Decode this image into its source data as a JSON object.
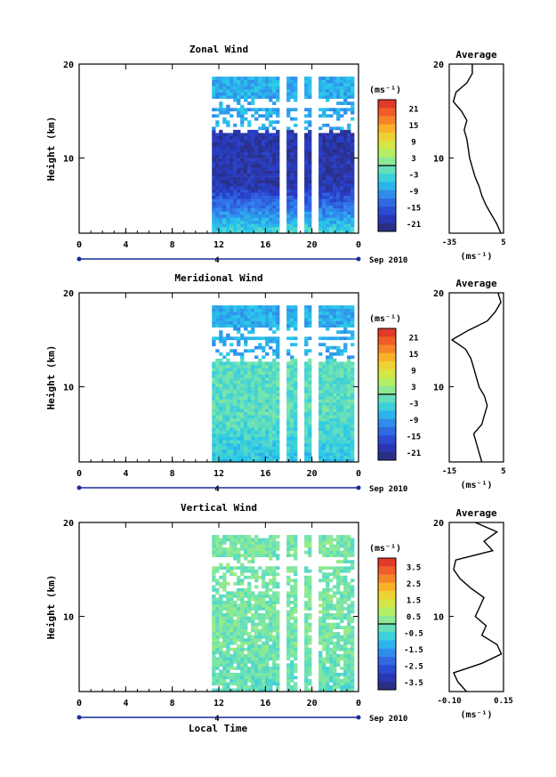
{
  "footer_axis_label": "Local Time",
  "colorbar_unit_label": "(ms⁻¹)",
  "avg_unit_label": "(ms⁻¹)",
  "panels": [
    {
      "title": "Zonal Wind",
      "ylabel": "Height (km)",
      "date_label": "Sep 2010",
      "day_label": "4",
      "avg_title": "Average",
      "colorbar_ticks": [
        "21",
        "15",
        "9",
        "3",
        "-3",
        "-9",
        "-15",
        "-21"
      ],
      "avg_xticks": [
        "-35",
        "5"
      ]
    },
    {
      "title": "Meridional Wind",
      "ylabel": "Height (km)",
      "date_label": "Sep 2010",
      "day_label": "4",
      "avg_title": "Average",
      "colorbar_ticks": [
        "21",
        "15",
        "9",
        "3",
        "-3",
        "-9",
        "-15",
        "-21"
      ],
      "avg_xticks": [
        "-15",
        "5"
      ]
    },
    {
      "title": "Vertical Wind",
      "ylabel": "Height (km)",
      "date_label": "Sep 2010",
      "day_label": "4",
      "avg_title": "Average",
      "colorbar_ticks": [
        "3.5",
        "2.5",
        "1.5",
        "0.5",
        "-0.5",
        "-1.5",
        "-2.5",
        "-3.5"
      ],
      "avg_xticks": [
        "-0.10",
        "0.15"
      ]
    }
  ],
  "chart_data": [
    {
      "type": "heatmap",
      "title": "Zonal Wind",
      "xlabel": "Local Time",
      "ylabel": "Height (km)",
      "x_ticks": [
        "0",
        "4",
        "8",
        "12",
        "16",
        "20",
        "0"
      ],
      "y_ticks": [
        "20",
        "10"
      ],
      "xlim": [
        0,
        24
      ],
      "ylim": [
        2,
        20
      ],
      "data_start_hour": 11.4,
      "colorbar": {
        "unit": "ms-1",
        "range": [
          -24,
          24
        ],
        "ticks": [
          21,
          15,
          9,
          3,
          -3,
          -9,
          -15,
          -21
        ]
      },
      "profile_hint": {
        "low_km": -4,
        "mid_km": -20,
        "high_km": -8
      },
      "average": {
        "title": "Average",
        "xlim": [
          -35,
          5
        ],
        "x_ticks": [
          -35,
          5
        ],
        "y_ticks": [
          20,
          10
        ],
        "heights_km": [
          2,
          3,
          4,
          5,
          6,
          7,
          8,
          9,
          10,
          11,
          12,
          13,
          14,
          15,
          16,
          17,
          18,
          19,
          20
        ],
        "values": [
          3,
          0,
          -4,
          -8,
          -11,
          -13,
          -16,
          -18,
          -20,
          -21,
          -22,
          -24,
          -22,
          -26,
          -32,
          -30,
          -22,
          -18,
          -18
        ]
      }
    },
    {
      "type": "heatmap",
      "title": "Meridional Wind",
      "xlabel": "Local Time",
      "ylabel": "Height (km)",
      "x_ticks": [
        "0",
        "4",
        "8",
        "12",
        "16",
        "20",
        "0"
      ],
      "y_ticks": [
        "20",
        "10"
      ],
      "xlim": [
        0,
        24
      ],
      "ylim": [
        2,
        20
      ],
      "data_start_hour": 11.4,
      "colorbar": {
        "unit": "ms-1",
        "range": [
          -24,
          24
        ],
        "ticks": [
          21,
          15,
          9,
          3,
          -3,
          -9,
          -15,
          -21
        ]
      },
      "profile_hint": {
        "low_km": -6,
        "mid_km": -2,
        "high_km": -8
      },
      "average": {
        "title": "Average",
        "xlim": [
          -15,
          5
        ],
        "x_ticks": [
          -15,
          5
        ],
        "y_ticks": [
          20,
          10
        ],
        "heights_km": [
          2,
          3,
          4,
          5,
          6,
          7,
          8,
          9,
          10,
          11,
          12,
          13,
          14,
          15,
          16,
          17,
          18,
          19,
          20
        ],
        "values": [
          -3,
          -4,
          -5,
          -6,
          -3,
          -2,
          -1,
          -2,
          -4,
          -5,
          -6,
          -7,
          -9,
          -14,
          -8,
          -1,
          2,
          4,
          3
        ]
      }
    },
    {
      "type": "heatmap",
      "title": "Vertical Wind",
      "xlabel": "Local Time",
      "ylabel": "Height (km)",
      "x_ticks": [
        "0",
        "4",
        "8",
        "12",
        "16",
        "20",
        "0"
      ],
      "y_ticks": [
        "20",
        "10"
      ],
      "xlim": [
        0,
        24
      ],
      "ylim": [
        2,
        20
      ],
      "data_start_hour": 11.4,
      "colorbar": {
        "unit": "ms-1",
        "range": [
          -4,
          4
        ],
        "ticks": [
          3.5,
          2.5,
          1.5,
          0.5,
          -0.5,
          -1.5,
          -2.5,
          -3.5
        ]
      },
      "profile_hint": {
        "low_km": -0.3,
        "mid_km": 0,
        "high_km": 0
      },
      "average": {
        "title": "Average",
        "xlim": [
          -0.1,
          0.15
        ],
        "x_ticks": [
          -0.1,
          0.15
        ],
        "y_ticks": [
          20,
          10
        ],
        "heights_km": [
          2,
          3,
          4,
          5,
          6,
          7,
          8,
          9,
          10,
          11,
          12,
          13,
          14,
          15,
          16,
          17,
          18,
          19,
          20
        ],
        "values": [
          -0.02,
          -0.06,
          -0.08,
          0.05,
          0.14,
          0.12,
          0.05,
          0.07,
          0.02,
          0.04,
          0.06,
          0.0,
          -0.05,
          -0.08,
          -0.07,
          0.1,
          0.06,
          0.12,
          0.02
        ]
      }
    }
  ]
}
